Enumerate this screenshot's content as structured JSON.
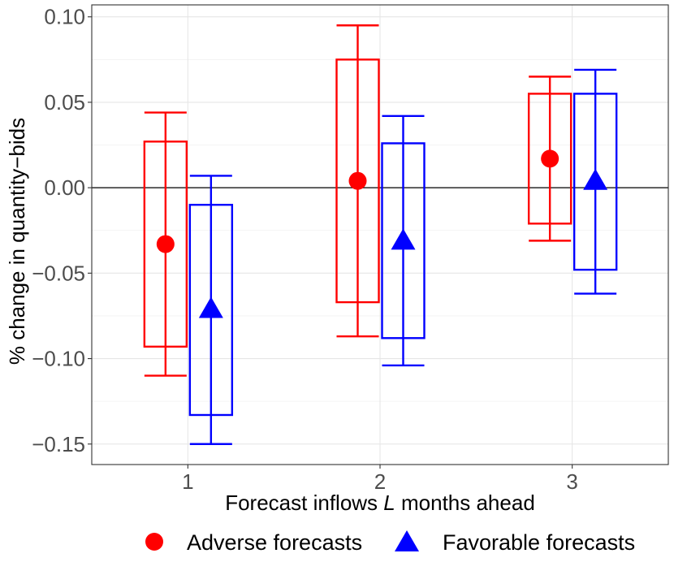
{
  "chart_data": {
    "type": "boxplot-errorbar",
    "xlabel_prefix": "Forecast inflows ",
    "xlabel_var": "L",
    "xlabel_suffix": " months ahead",
    "ylabel": "% change in quantity−bids",
    "categories": [
      "1",
      "2",
      "3"
    ],
    "ylim": [
      -0.162,
      0.107
    ],
    "yticks": [
      0.1,
      0.05,
      0.0,
      -0.05,
      -0.1,
      -0.15
    ],
    "ytick_labels": [
      "0.10",
      "0.05",
      "0.00",
      "−0.05",
      "−0.10",
      "−0.15"
    ],
    "minor_yticks": [
      0.075,
      0.025,
      -0.025,
      -0.075,
      -0.125
    ],
    "reference_line_y": 0,
    "series": [
      {
        "name": "Adverse forecasts",
        "color": "#ff0000",
        "marker": "circle",
        "points": [
          {
            "category": "1",
            "estimate": -0.033,
            "box_low": -0.093,
            "box_high": 0.027,
            "whisker_low": -0.11,
            "whisker_high": 0.044
          },
          {
            "category": "2",
            "estimate": 0.004,
            "box_low": -0.067,
            "box_high": 0.075,
            "whisker_low": -0.087,
            "whisker_high": 0.095
          },
          {
            "category": "3",
            "estimate": 0.017,
            "box_low": -0.021,
            "box_high": 0.055,
            "whisker_low": -0.031,
            "whisker_high": 0.065
          }
        ]
      },
      {
        "name": "Favorable forecasts",
        "color": "#0000ff",
        "marker": "triangle",
        "points": [
          {
            "category": "1",
            "estimate": -0.071,
            "box_low": -0.133,
            "box_high": -0.01,
            "whisker_low": -0.15,
            "whisker_high": 0.007
          },
          {
            "category": "2",
            "estimate": -0.031,
            "box_low": -0.088,
            "box_high": 0.026,
            "whisker_low": -0.104,
            "whisker_high": 0.042
          },
          {
            "category": "3",
            "estimate": 0.004,
            "box_low": -0.048,
            "box_high": 0.055,
            "whisker_low": -0.062,
            "whisker_high": 0.069
          }
        ]
      }
    ],
    "legend_position": "bottom"
  }
}
